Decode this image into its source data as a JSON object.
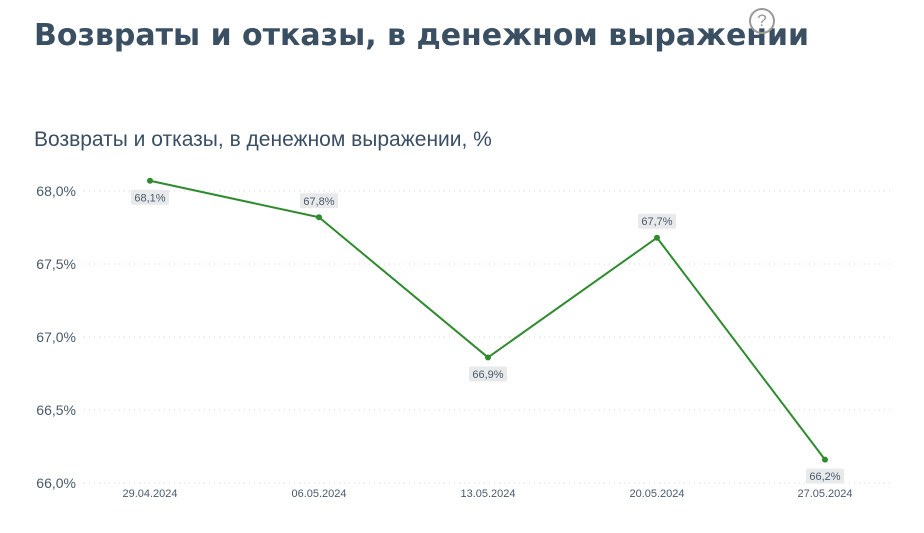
{
  "header": {
    "title": "Возвраты и отказы, в денежном выражении",
    "help_icon": "question-circle-icon",
    "help_glyph": "?"
  },
  "chart": {
    "title": "Возвраты и отказы, в денежном выражении, %"
  },
  "chart_data": {
    "type": "line",
    "title": "Возвраты и отказы, в денежном выражении, %",
    "xlabel": "",
    "ylabel": "",
    "categories": [
      "29.04.2024",
      "06.05.2024",
      "13.05.2024",
      "20.05.2024",
      "27.05.2024"
    ],
    "series": [
      {
        "name": "Возвраты и отказы, в денежном выражении, %",
        "values": [
          68.07,
          67.82,
          66.86,
          67.68,
          66.16
        ],
        "labels": [
          "68,1%",
          "67,8%",
          "66,9%",
          "67,7%",
          "66,2%"
        ],
        "color": "#2e8b2e"
      }
    ],
    "y_ticks": [
      68.0,
      67.5,
      67.0,
      66.5,
      66.0
    ],
    "y_tick_labels": [
      "68,0%",
      "67,5%",
      "67,0%",
      "66,5%",
      "66,0%"
    ],
    "ylim": [
      66.0,
      68.0
    ],
    "grid": true,
    "grid_style": "dotted",
    "legend": "none"
  },
  "colors": {
    "title": "#3b4f63",
    "line": "#2e8b2e",
    "grid": "#d9d9d9",
    "label_bg": "#e8e9eb",
    "tick_text": "#4a5a6b"
  }
}
